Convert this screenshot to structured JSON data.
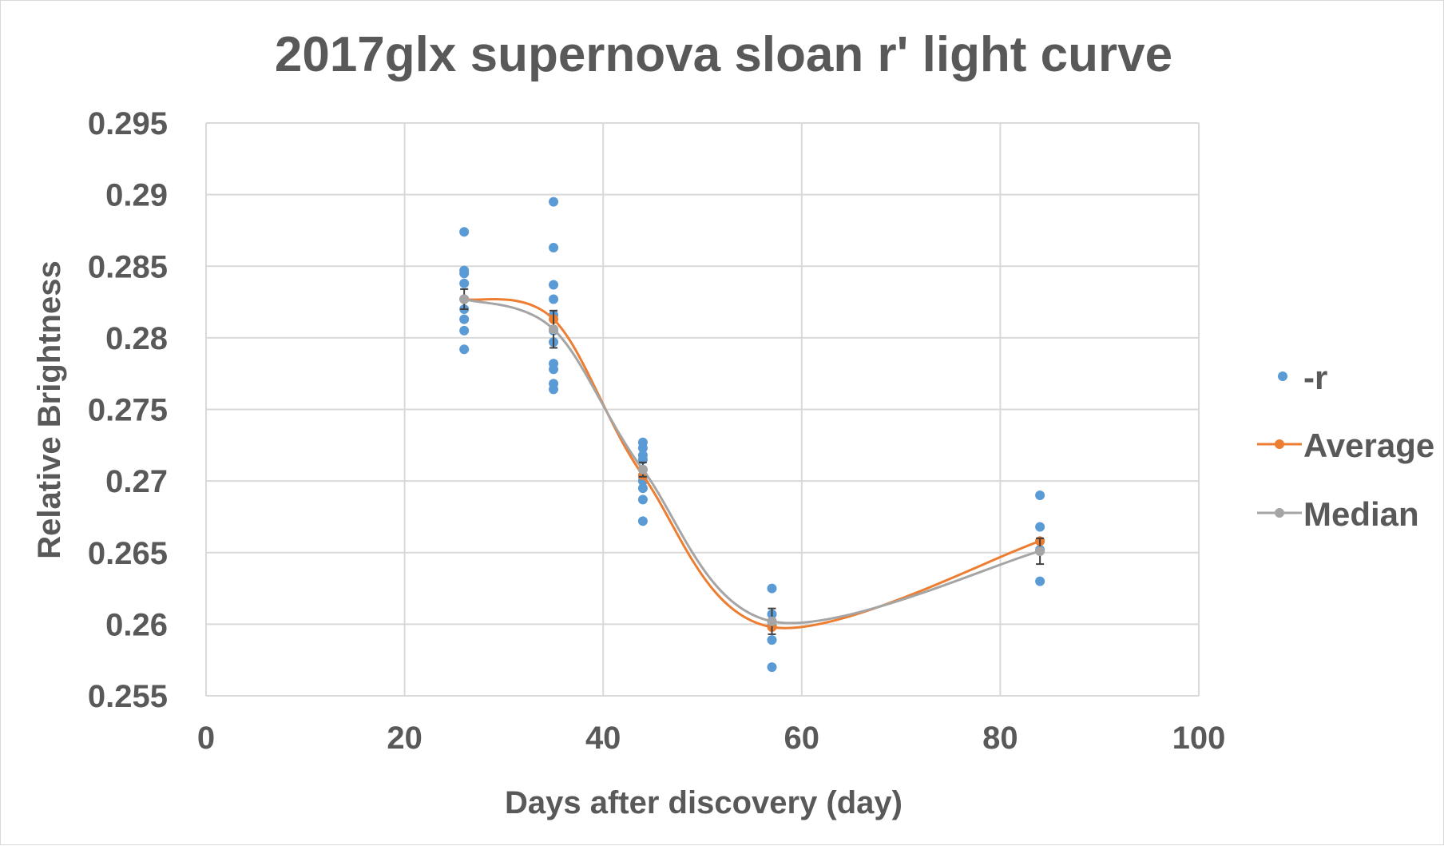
{
  "chart_data": {
    "type": "scatter",
    "title": "2017glx supernova sloan r' light curve",
    "xlabel": "Days after discovery (day)",
    "ylabel": "Relative Brightness",
    "xlim": [
      0,
      100
    ],
    "ylim": [
      0.255,
      0.295
    ],
    "x_ticks": [
      0,
      20,
      40,
      60,
      80,
      100
    ],
    "x_tick_labels": [
      "0",
      "20",
      "40",
      "60",
      "80",
      "100"
    ],
    "y_ticks": [
      0.255,
      0.26,
      0.265,
      0.27,
      0.275,
      0.28,
      0.285,
      0.29,
      0.295
    ],
    "y_tick_labels": [
      "0.255",
      "0.26",
      "0.265",
      "0.27",
      "0.275",
      "0.28",
      "0.285",
      "0.29",
      "0.295"
    ],
    "grid": true,
    "legend_position": "right",
    "series": [
      {
        "name": "-r",
        "kind": "scatter",
        "color": "#5b9bd5",
        "points": [
          [
            26,
            0.2874
          ],
          [
            26,
            0.2847
          ],
          [
            26,
            0.2845
          ],
          [
            26,
            0.2838
          ],
          [
            26,
            0.2827
          ],
          [
            26,
            0.282
          ],
          [
            26,
            0.2813
          ],
          [
            26,
            0.2805
          ],
          [
            26,
            0.2792
          ],
          [
            35,
            0.2895
          ],
          [
            35,
            0.2863
          ],
          [
            35,
            0.2837
          ],
          [
            35,
            0.2827
          ],
          [
            35,
            0.2816
          ],
          [
            35,
            0.2805
          ],
          [
            35,
            0.2797
          ],
          [
            35,
            0.2782
          ],
          [
            35,
            0.2778
          ],
          [
            35,
            0.2768
          ],
          [
            35,
            0.2764
          ],
          [
            44,
            0.2727
          ],
          [
            44,
            0.2723
          ],
          [
            44,
            0.2718
          ],
          [
            44,
            0.2715
          ],
          [
            44,
            0.2708
          ],
          [
            44,
            0.2703
          ],
          [
            44,
            0.27
          ],
          [
            44,
            0.2695
          ],
          [
            44,
            0.2687
          ],
          [
            44,
            0.2672
          ],
          [
            57,
            0.2625
          ],
          [
            57,
            0.2607
          ],
          [
            57,
            0.2602
          ],
          [
            57,
            0.2599
          ],
          [
            57,
            0.2589
          ],
          [
            57,
            0.257
          ],
          [
            84,
            0.269
          ],
          [
            84,
            0.2668
          ],
          [
            84,
            0.2658
          ],
          [
            84,
            0.2652
          ],
          [
            84,
            0.263
          ]
        ]
      },
      {
        "name": "Average",
        "kind": "line-smooth",
        "color": "#ed7d31",
        "x": [
          26,
          35,
          44,
          57,
          84
        ],
        "y": [
          0.2827,
          0.2813,
          0.2704,
          0.2598,
          0.2658
        ]
      },
      {
        "name": "Median",
        "kind": "line-smooth",
        "color": "#a5a5a5",
        "x": [
          26,
          35,
          44,
          57,
          84
        ],
        "y": [
          0.2827,
          0.2806,
          0.2708,
          0.2602,
          0.2651
        ],
        "error": [
          0.0007,
          0.0013,
          0.0005,
          0.0009,
          0.0009
        ]
      }
    ]
  }
}
